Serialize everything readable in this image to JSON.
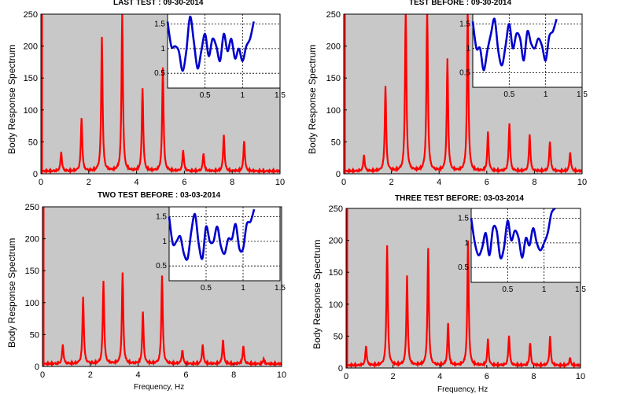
{
  "figure": {
    "ylabel": "Body Response Spectrum",
    "xlabel": "Frequency, Hz",
    "colors": {
      "spectrum": "#ff0000",
      "inset": "#0000cc",
      "plot_bg": "#c8c8c8"
    }
  },
  "chart_data": [
    {
      "type": "line",
      "title": "LAST TEST : 09-30-2014",
      "ylabel": "Body Response Spectrum",
      "xlabel": "",
      "xlim": [
        0,
        10
      ],
      "ylim": [
        0,
        250
      ],
      "xticks": [
        0,
        2,
        4,
        6,
        8,
        10
      ],
      "yticks": [
        0,
        50,
        100,
        150,
        200,
        250
      ],
      "grid": false,
      "peaks": [
        [
          0.85,
          30
        ],
        [
          1.7,
          83
        ],
        [
          2.55,
          210
        ],
        [
          3.4,
          245
        ],
        [
          4.25,
          130
        ],
        [
          5.1,
          162
        ],
        [
          5.95,
          33
        ],
        [
          6.8,
          28
        ],
        [
          7.65,
          57
        ],
        [
          8.5,
          48
        ]
      ],
      "inset": {
        "type": "line",
        "xlim": [
          0,
          1.5
        ],
        "ylim": [
          0.2,
          1.7
        ],
        "xticks": [
          0.5,
          1,
          1.5
        ],
        "yticks": [
          0.5,
          1,
          1.5
        ],
        "grid": "dashed",
        "x": [
          0.0,
          0.05,
          0.1,
          0.15,
          0.2,
          0.25,
          0.3,
          0.35,
          0.4,
          0.45,
          0.5,
          0.55,
          0.6,
          0.65,
          0.7,
          0.75,
          0.8,
          0.85,
          0.9,
          0.95,
          1.0,
          1.05,
          1.1,
          1.15
        ],
        "y": [
          1.55,
          1.05,
          1.05,
          0.95,
          0.55,
          0.95,
          1.65,
          1.15,
          0.6,
          0.95,
          1.3,
          0.85,
          1.2,
          1.05,
          0.75,
          1.3,
          0.95,
          1.2,
          0.8,
          1.0,
          0.75,
          1.05,
          1.2,
          1.55
        ]
      }
    },
    {
      "type": "line",
      "title": "TEST BEFORE : 09-30-2014",
      "ylabel": "Body Response Spectrum",
      "xlabel": "",
      "xlim": [
        0,
        10
      ],
      "ylim": [
        0,
        250
      ],
      "xticks": [
        0,
        2,
        4,
        6,
        8,
        10
      ],
      "yticks": [
        0,
        50,
        100,
        150,
        200,
        250
      ],
      "grid": false,
      "peaks": [
        [
          0.85,
          25
        ],
        [
          1.75,
          133
        ],
        [
          2.6,
          260
        ],
        [
          3.5,
          260
        ],
        [
          4.35,
          175
        ],
        [
          5.2,
          255
        ],
        [
          6.05,
          60
        ],
        [
          6.95,
          75
        ],
        [
          7.8,
          58
        ],
        [
          8.65,
          47
        ],
        [
          9.5,
          30
        ]
      ],
      "inset": {
        "type": "line",
        "xlim": [
          0,
          1.5
        ],
        "ylim": [
          0.2,
          1.7
        ],
        "xticks": [
          0.5,
          1,
          1.5
        ],
        "yticks": [
          0.5,
          1,
          1.5
        ],
        "grid": "dashed",
        "x": [
          0.0,
          0.05,
          0.1,
          0.15,
          0.2,
          0.25,
          0.3,
          0.35,
          0.4,
          0.45,
          0.5,
          0.55,
          0.6,
          0.65,
          0.7,
          0.75,
          0.8,
          0.85,
          0.9,
          0.95,
          1.0,
          1.05,
          1.1,
          1.15
        ],
        "y": [
          1.55,
          1.0,
          1.0,
          0.55,
          0.95,
          1.3,
          1.6,
          0.95,
          0.65,
          1.05,
          1.5,
          1.0,
          1.3,
          1.2,
          0.75,
          1.35,
          1.1,
          1.0,
          1.2,
          1.05,
          0.75,
          1.25,
          1.35,
          1.6
        ]
      }
    },
    {
      "type": "line",
      "title": "TWO TEST BEFORE : 03-03-2014",
      "ylabel": "Body Response Spectrum",
      "xlabel": "Frequency, Hz",
      "xlim": [
        0,
        10
      ],
      "ylim": [
        0,
        250
      ],
      "xticks": [
        0,
        2,
        4,
        6,
        8,
        10
      ],
      "yticks": [
        0,
        50,
        100,
        150,
        200,
        250
      ],
      "grid": false,
      "peaks": [
        [
          0.85,
          30
        ],
        [
          1.7,
          105
        ],
        [
          2.55,
          130
        ],
        [
          3.35,
          142
        ],
        [
          4.2,
          80
        ],
        [
          5.0,
          138
        ],
        [
          5.85,
          22
        ],
        [
          6.7,
          30
        ],
        [
          7.55,
          38
        ],
        [
          8.4,
          28
        ],
        [
          9.25,
          8
        ]
      ],
      "inset": {
        "type": "line",
        "xlim": [
          0,
          1.5
        ],
        "ylim": [
          0.2,
          1.7
        ],
        "xticks": [
          0.5,
          1,
          1.5
        ],
        "yticks": [
          0.5,
          1,
          1.5
        ],
        "grid": "dashed",
        "x": [
          0.0,
          0.05,
          0.1,
          0.15,
          0.2,
          0.25,
          0.3,
          0.35,
          0.4,
          0.45,
          0.5,
          0.55,
          0.6,
          0.65,
          0.7,
          0.75,
          0.8,
          0.85,
          0.9,
          0.95,
          1.0,
          1.05,
          1.1,
          1.15
        ],
        "y": [
          1.5,
          0.95,
          1.0,
          1.1,
          0.75,
          0.65,
          1.2,
          1.55,
          0.95,
          0.65,
          1.3,
          1.0,
          1.0,
          1.3,
          0.9,
          0.75,
          1.05,
          1.05,
          1.35,
          0.85,
          0.85,
          1.35,
          1.4,
          1.65
        ]
      }
    },
    {
      "type": "line",
      "title": "THREE TEST BEFORE:   03-03-2014",
      "ylabel": "Body Response Spectrum",
      "xlabel": "Frequency, Hz",
      "xlim": [
        0,
        10
      ],
      "ylim": [
        0,
        250
      ],
      "xticks": [
        0,
        2,
        4,
        6,
        8,
        10
      ],
      "yticks": [
        0,
        50,
        100,
        150,
        200,
        250
      ],
      "grid": false,
      "peaks": [
        [
          0.85,
          30
        ],
        [
          1.75,
          188
        ],
        [
          2.6,
          140
        ],
        [
          3.5,
          182
        ],
        [
          4.35,
          65
        ],
        [
          5.2,
          195
        ],
        [
          6.05,
          40
        ],
        [
          6.95,
          47
        ],
        [
          7.85,
          35
        ],
        [
          8.7,
          45
        ],
        [
          9.55,
          12
        ]
      ],
      "inset": {
        "type": "line",
        "xlim": [
          0,
          1.5
        ],
        "ylim": [
          0.2,
          1.7
        ],
        "xticks": [
          0.5,
          1,
          1.5
        ],
        "yticks": [
          0.5,
          1,
          1.5
        ],
        "grid": "dashed",
        "x": [
          0.0,
          0.05,
          0.1,
          0.15,
          0.2,
          0.25,
          0.3,
          0.35,
          0.4,
          0.45,
          0.5,
          0.55,
          0.6,
          0.65,
          0.7,
          0.75,
          0.8,
          0.85,
          0.9,
          0.95,
          1.0,
          1.05,
          1.1,
          1.15
        ],
        "y": [
          1.5,
          1.0,
          0.75,
          0.9,
          1.2,
          0.75,
          1.3,
          1.25,
          0.7,
          0.9,
          1.45,
          1.05,
          1.25,
          1.1,
          0.7,
          1.1,
          0.95,
          1.3,
          1.0,
          0.85,
          1.0,
          1.2,
          1.6,
          1.7
        ]
      }
    }
  ]
}
